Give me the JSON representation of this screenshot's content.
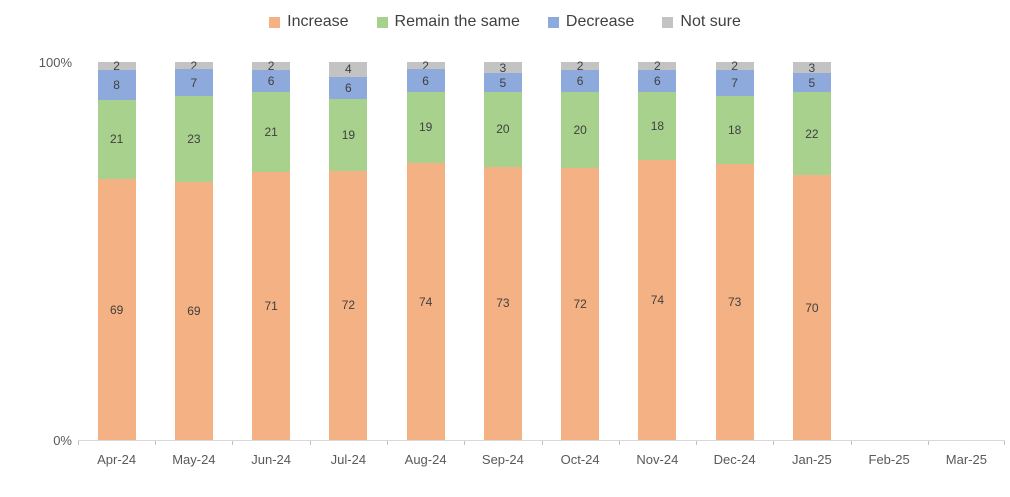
{
  "chart_data": {
    "type": "bar",
    "variant": "100-percent-stacked-column",
    "title": "",
    "categories": [
      "Apr-24",
      "May-24",
      "Jun-24",
      "Jul-24",
      "Aug-24",
      "Sep-24",
      "Oct-24",
      "Nov-24",
      "Dec-24",
      "Jan-25",
      "Feb-25",
      "Mar-25"
    ],
    "series": [
      {
        "name": "Increase",
        "color": "#F4B183",
        "values": [
          69,
          69,
          71,
          72,
          74,
          73,
          72,
          74,
          73,
          70,
          null,
          null
        ]
      },
      {
        "name": "Remain the same",
        "color": "#A9D18E",
        "values": [
          21,
          23,
          21,
          19,
          19,
          20,
          20,
          18,
          18,
          22,
          null,
          null
        ]
      },
      {
        "name": "Decrease",
        "color": "#8EA9DB",
        "values": [
          8,
          7,
          6,
          6,
          6,
          5,
          6,
          6,
          7,
          5,
          null,
          null
        ]
      },
      {
        "name": "Not sure",
        "color": "#C3C3C3",
        "values": [
          2,
          2,
          2,
          4,
          2,
          3,
          2,
          2,
          2,
          3,
          null,
          null
        ]
      }
    ],
    "y_axis": {
      "max_label": "100%",
      "min_label": "0%",
      "range": [
        0,
        100
      ],
      "gridlines": false
    },
    "legend_position": "top",
    "data_labels": true
  },
  "colors": {
    "segment_label_text": "#3F3F3F",
    "axis_text": "#595959",
    "axis_line": "#D9D9D9",
    "tick": "#BFBFBF",
    "legend_text": "#404040",
    "background": "#FFFFFF"
  }
}
